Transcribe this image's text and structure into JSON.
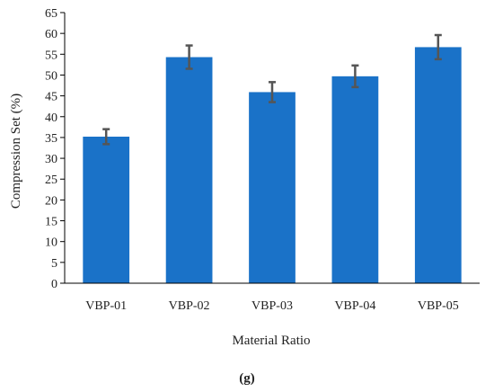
{
  "chart_data": {
    "type": "bar",
    "title": "",
    "xlabel": "Material Ratio",
    "ylabel": "Compression Set (%)",
    "categories": [
      "VBP-01",
      "VBP-02",
      "VBP-03",
      "VBP-04",
      "VBP-05"
    ],
    "values": [
      35.2,
      54.3,
      45.9,
      49.7,
      56.7
    ],
    "error": [
      1.8,
      2.8,
      2.4,
      2.6,
      2.9
    ],
    "ylim": [
      0,
      65
    ],
    "ytick_step": 5,
    "yticks": [
      "0",
      "5",
      "10",
      "15",
      "20",
      "25",
      "30",
      "35",
      "40",
      "45",
      "50",
      "55",
      "60",
      "65"
    ],
    "grid": false,
    "legend": "none",
    "bar_color": "#1a72c8",
    "errorbar_color": "#555555"
  },
  "caption": "(g)"
}
